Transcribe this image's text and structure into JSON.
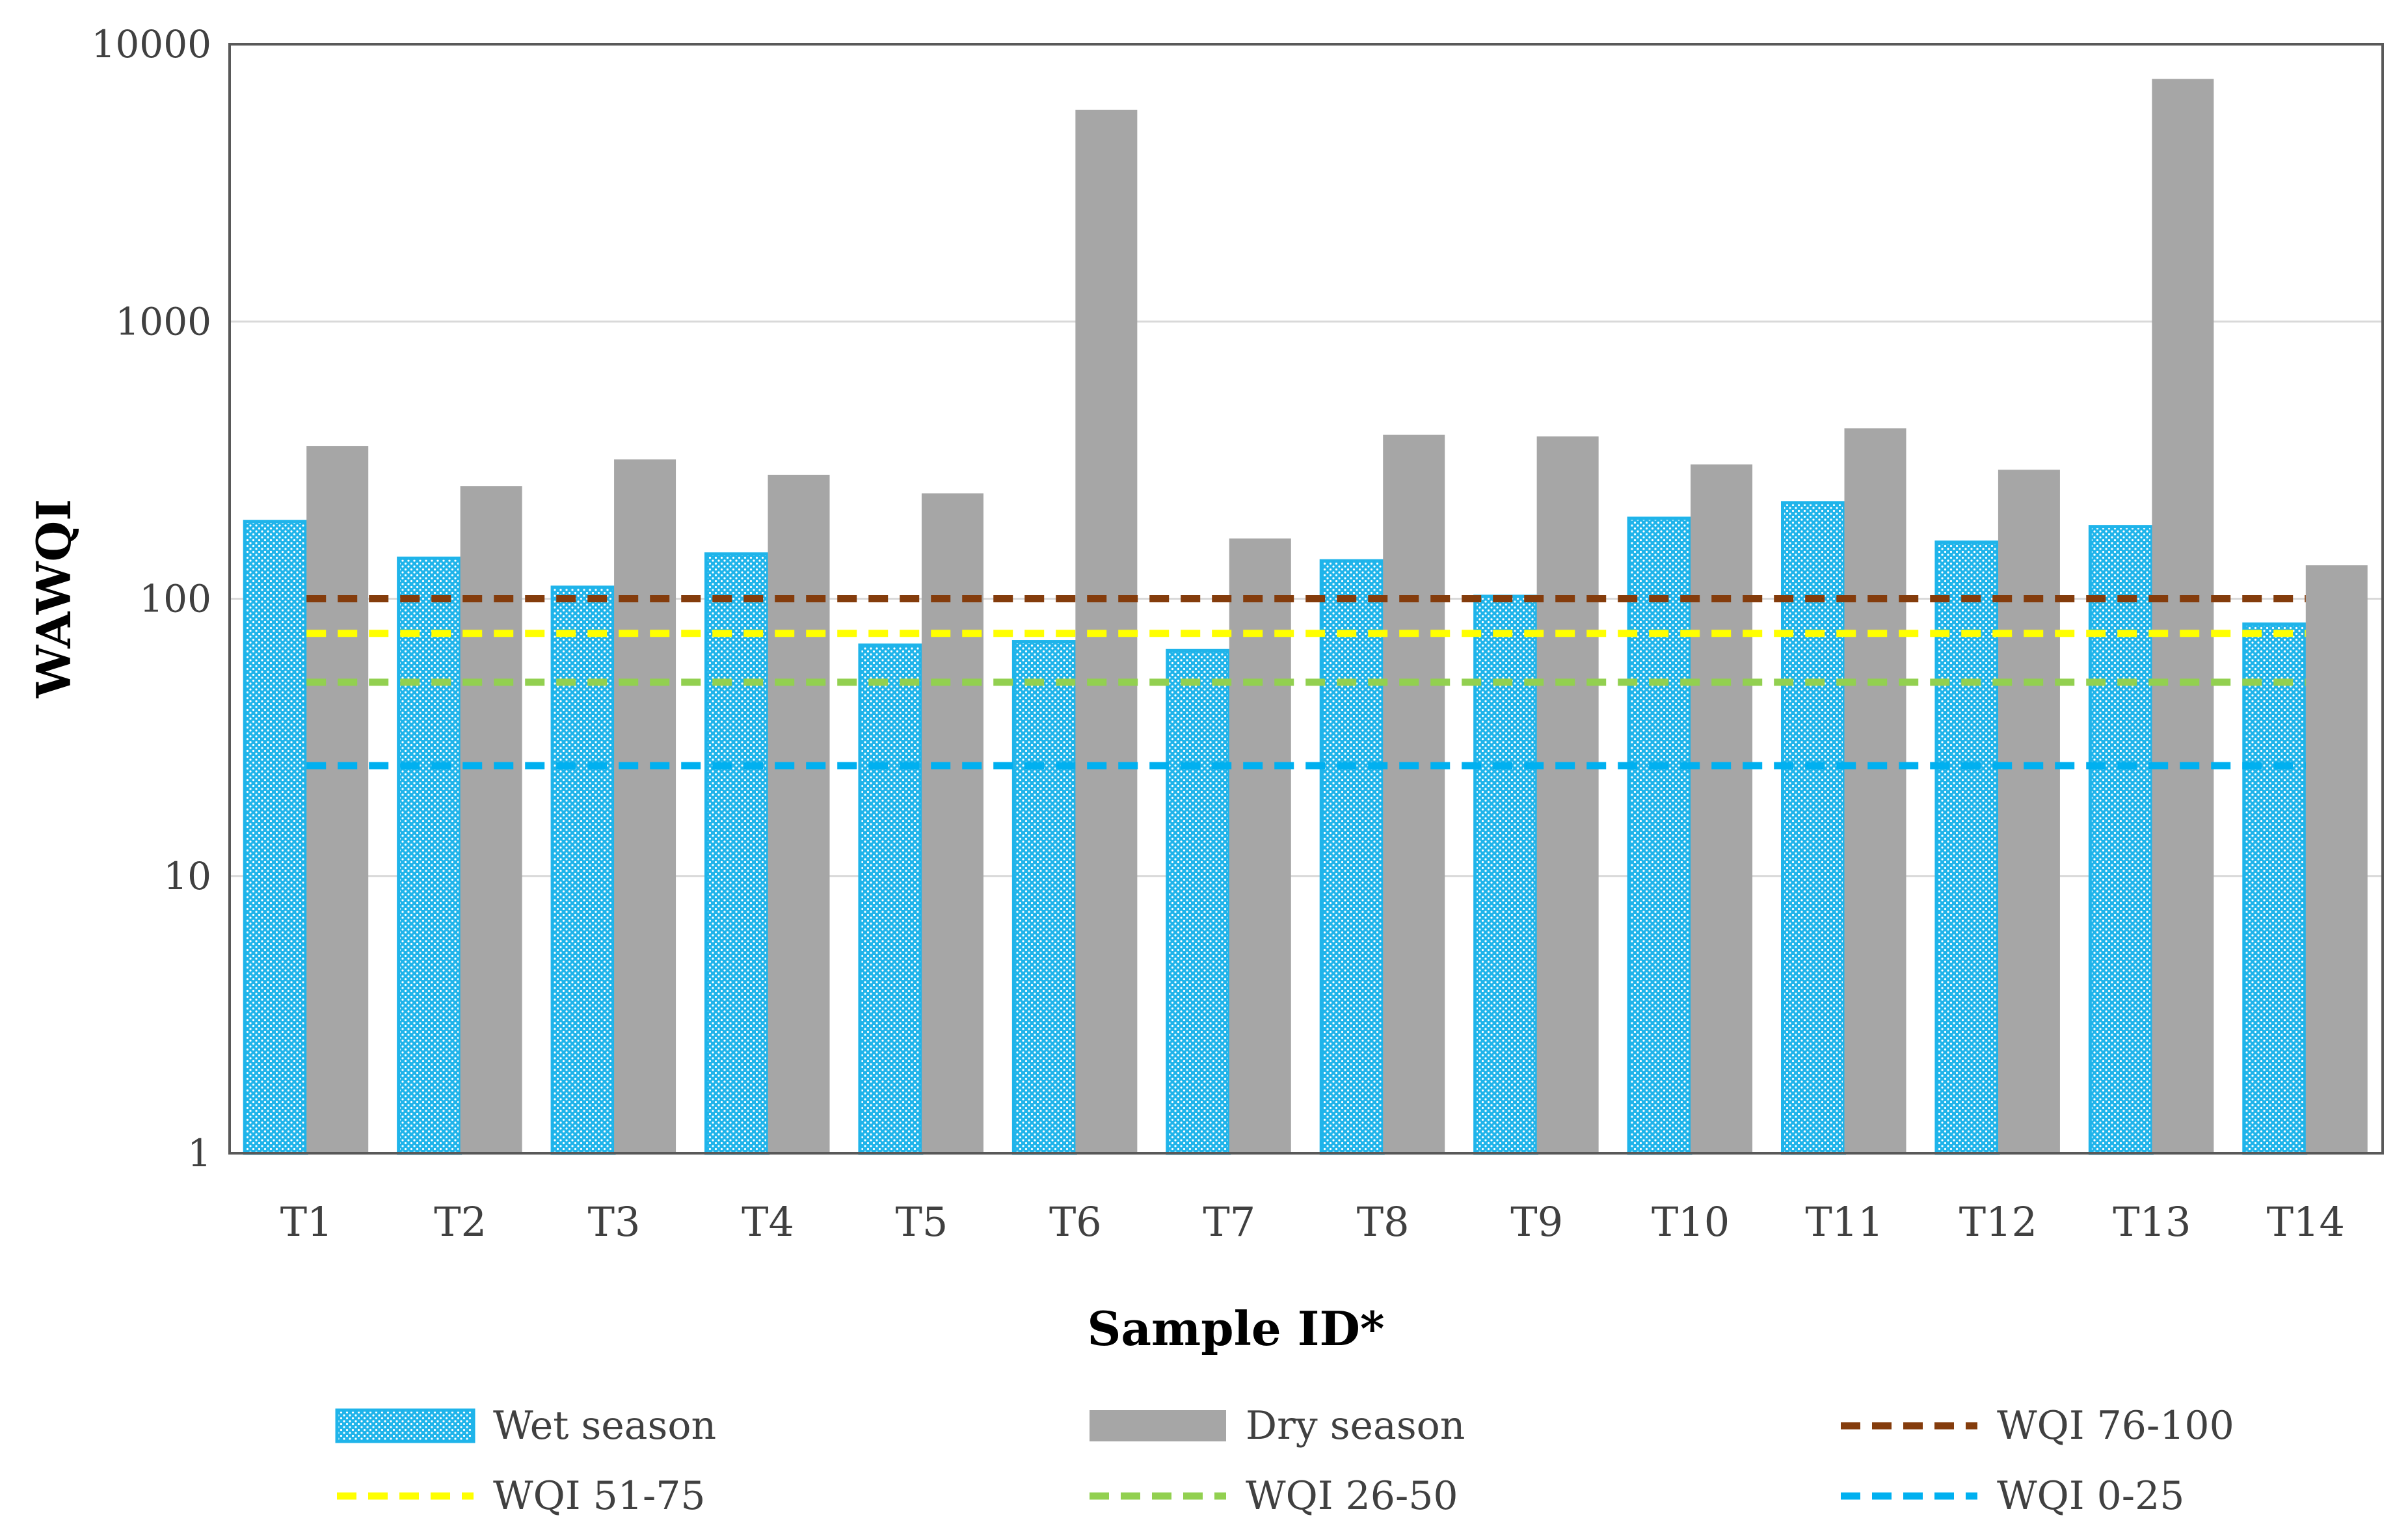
{
  "chart_data": {
    "type": "bar",
    "title": "",
    "xlabel": "Sample ID*",
    "ylabel": "WAWQI",
    "yscale": "log",
    "ylim": [
      1,
      10000
    ],
    "y_ticks": [
      "1",
      "10",
      "100",
      "1000",
      "10000"
    ],
    "y_tick_values": [
      1,
      10,
      100,
      1000,
      10000
    ],
    "grid": true,
    "legend_position": "bottom",
    "categories": [
      "T1",
      "T2",
      "T3",
      "T4",
      "T5",
      "T6",
      "T7",
      "T8",
      "T9",
      "T10",
      "T11",
      "T12",
      "T13",
      "T14"
    ],
    "series": [
      {
        "name": "Wet season",
        "color": "#1fb4ea",
        "pattern": "dotted",
        "values": [
          190,
          140,
          110,
          145,
          68,
          70,
          65,
          137,
          102,
          195,
          222,
          160,
          182,
          81
        ]
      },
      {
        "name": "Dry season",
        "color": "#a6a6a6",
        "values": [
          355,
          255,
          318,
          280,
          240,
          5800,
          165,
          390,
          385,
          305,
          412,
          292,
          7500,
          132
        ]
      }
    ],
    "reference_lines": [
      {
        "name": "WQI 76-100",
        "value": 100,
        "color": "#843c0c"
      },
      {
        "name": "WQI 51-75",
        "value": 75,
        "color": "#ffff00"
      },
      {
        "name": "WQI 26-50",
        "value": 50,
        "color": "#92d050"
      },
      {
        "name": "WQI 0-25",
        "value": 25,
        "color": "#00b0f0"
      }
    ],
    "legend": [
      {
        "label": "Wet season",
        "kind": "bar",
        "series": 0
      },
      {
        "label": "Dry season",
        "kind": "bar",
        "series": 1
      },
      {
        "label": "WQI 76-100",
        "kind": "line",
        "ref": 0
      },
      {
        "label": "WQI 51-75",
        "kind": "line",
        "ref": 1
      },
      {
        "label": "WQI 26-50",
        "kind": "line",
        "ref": 2
      },
      {
        "label": "WQI 0-25",
        "kind": "line",
        "ref": 3
      }
    ]
  }
}
